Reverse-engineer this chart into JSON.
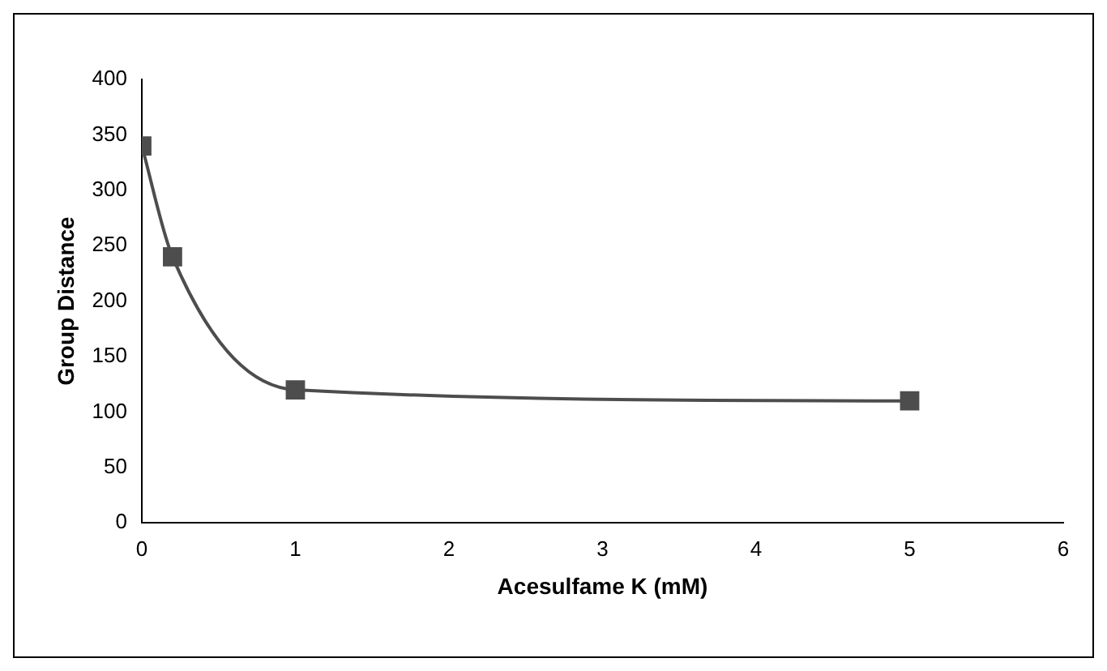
{
  "chart_data": {
    "type": "line",
    "xlabel": "Acesulfame K (mM)",
    "ylabel": "Group Distance",
    "x": [
      0,
      0.2,
      1,
      5
    ],
    "series": [
      {
        "color": "#4d4d4d",
        "values": [
          340,
          240,
          120,
          110
        ]
      }
    ],
    "xlim": [
      0,
      6
    ],
    "xticks": [
      0,
      1,
      2,
      3,
      4,
      5,
      6
    ],
    "ylim": [
      0,
      400
    ],
    "yticks": [
      0,
      50,
      100,
      150,
      200,
      250,
      300,
      350,
      400
    ],
    "marker": "square",
    "line_style": "solid",
    "grid": false,
    "legend": false
  }
}
